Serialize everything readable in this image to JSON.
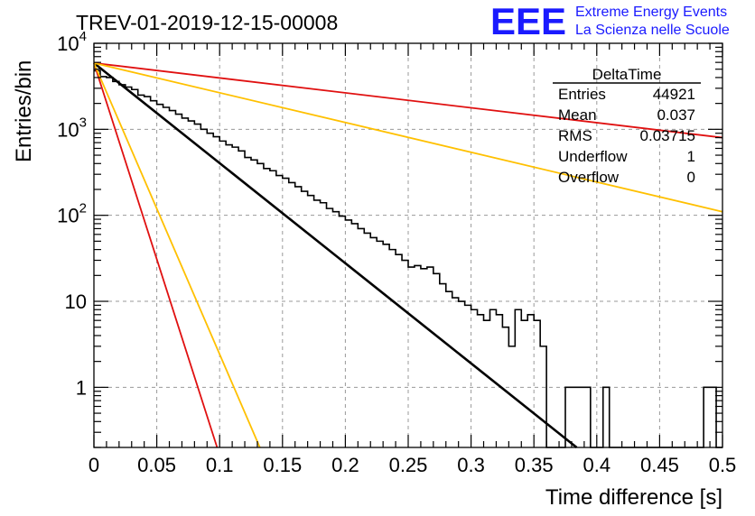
{
  "chart_data": {
    "type": "histogram",
    "title": "TREV-01-2019-12-15-00008",
    "xlabel": "Time difference [s]",
    "ylabel": "Entries/bin",
    "xlim": [
      0,
      0.5
    ],
    "ylim": [
      0.2,
      10000
    ],
    "yscale": "log",
    "grid": true,
    "x_ticks": [
      {
        "value": 0,
        "label": "0"
      },
      {
        "value": 0.05,
        "label": "0.05"
      },
      {
        "value": 0.1,
        "label": "0.1"
      },
      {
        "value": 0.15,
        "label": "0.15"
      },
      {
        "value": 0.2,
        "label": "0.2"
      },
      {
        "value": 0.25,
        "label": "0.25"
      },
      {
        "value": 0.3,
        "label": "0.3"
      },
      {
        "value": 0.35,
        "label": "0.35"
      },
      {
        "value": 0.4,
        "label": "0.4"
      },
      {
        "value": 0.45,
        "label": "0.45"
      },
      {
        "value": 0.5,
        "label": "0.5"
      }
    ],
    "y_ticks": [
      {
        "value": 1,
        "label": "1"
      },
      {
        "value": 10,
        "label": "10"
      },
      {
        "value": 100,
        "label": "10",
        "exp": "2"
      },
      {
        "value": 1000,
        "label": "10",
        "exp": "3"
      },
      {
        "value": 10000,
        "label": "10",
        "exp": "4"
      }
    ],
    "histogram": {
      "name": "DeltaTime",
      "color": "#000000",
      "bin_width": 0.005,
      "bins": [
        {
          "x0": 0.0,
          "y": 4800
        },
        {
          "x0": 0.005,
          "y": 4100
        },
        {
          "x0": 0.01,
          "y": 4000
        },
        {
          "x0": 0.015,
          "y": 3600
        },
        {
          "x0": 0.02,
          "y": 3300
        },
        {
          "x0": 0.025,
          "y": 3100
        },
        {
          "x0": 0.03,
          "y": 2900
        },
        {
          "x0": 0.035,
          "y": 2500
        },
        {
          "x0": 0.04,
          "y": 2400
        },
        {
          "x0": 0.045,
          "y": 2150
        },
        {
          "x0": 0.05,
          "y": 1950
        },
        {
          "x0": 0.055,
          "y": 1800
        },
        {
          "x0": 0.06,
          "y": 1650
        },
        {
          "x0": 0.065,
          "y": 1500
        },
        {
          "x0": 0.07,
          "y": 1350
        },
        {
          "x0": 0.075,
          "y": 1250
        },
        {
          "x0": 0.08,
          "y": 1150
        },
        {
          "x0": 0.085,
          "y": 1000
        },
        {
          "x0": 0.09,
          "y": 900
        },
        {
          "x0": 0.095,
          "y": 820
        },
        {
          "x0": 0.1,
          "y": 730
        },
        {
          "x0": 0.105,
          "y": 660
        },
        {
          "x0": 0.11,
          "y": 620
        },
        {
          "x0": 0.115,
          "y": 560
        },
        {
          "x0": 0.12,
          "y": 470
        },
        {
          "x0": 0.125,
          "y": 440
        },
        {
          "x0": 0.13,
          "y": 400
        },
        {
          "x0": 0.135,
          "y": 350
        },
        {
          "x0": 0.14,
          "y": 330
        },
        {
          "x0": 0.145,
          "y": 290
        },
        {
          "x0": 0.15,
          "y": 270
        },
        {
          "x0": 0.155,
          "y": 240
        },
        {
          "x0": 0.16,
          "y": 215
        },
        {
          "x0": 0.165,
          "y": 190
        },
        {
          "x0": 0.17,
          "y": 170
        },
        {
          "x0": 0.175,
          "y": 150
        },
        {
          "x0": 0.18,
          "y": 140
        },
        {
          "x0": 0.185,
          "y": 120
        },
        {
          "x0": 0.19,
          "y": 110
        },
        {
          "x0": 0.195,
          "y": 98
        },
        {
          "x0": 0.2,
          "y": 88
        },
        {
          "x0": 0.205,
          "y": 80
        },
        {
          "x0": 0.21,
          "y": 70
        },
        {
          "x0": 0.215,
          "y": 62
        },
        {
          "x0": 0.22,
          "y": 55
        },
        {
          "x0": 0.225,
          "y": 50
        },
        {
          "x0": 0.23,
          "y": 46
        },
        {
          "x0": 0.235,
          "y": 40
        },
        {
          "x0": 0.24,
          "y": 35
        },
        {
          "x0": 0.245,
          "y": 30
        },
        {
          "x0": 0.25,
          "y": 25
        },
        {
          "x0": 0.255,
          "y": 26
        },
        {
          "x0": 0.26,
          "y": 24
        },
        {
          "x0": 0.265,
          "y": 25
        },
        {
          "x0": 0.27,
          "y": 21
        },
        {
          "x0": 0.275,
          "y": 16
        },
        {
          "x0": 0.28,
          "y": 13
        },
        {
          "x0": 0.285,
          "y": 11
        },
        {
          "x0": 0.29,
          "y": 10
        },
        {
          "x0": 0.295,
          "y": 9
        },
        {
          "x0": 0.3,
          "y": 8
        },
        {
          "x0": 0.305,
          "y": 7
        },
        {
          "x0": 0.31,
          "y": 6
        },
        {
          "x0": 0.315,
          "y": 8
        },
        {
          "x0": 0.32,
          "y": 7
        },
        {
          "x0": 0.325,
          "y": 5
        },
        {
          "x0": 0.33,
          "y": 3
        },
        {
          "x0": 0.335,
          "y": 8
        },
        {
          "x0": 0.34,
          "y": 6
        },
        {
          "x0": 0.345,
          "y": 7
        },
        {
          "x0": 0.35,
          "y": 6
        },
        {
          "x0": 0.355,
          "y": 3
        },
        {
          "x0": 0.36,
          "y": 0
        },
        {
          "x0": 0.365,
          "y": 0
        },
        {
          "x0": 0.37,
          "y": 0
        },
        {
          "x0": 0.375,
          "y": 1
        },
        {
          "x0": 0.38,
          "y": 1
        },
        {
          "x0": 0.385,
          "y": 1
        },
        {
          "x0": 0.39,
          "y": 1
        },
        {
          "x0": 0.395,
          "y": 0
        },
        {
          "x0": 0.4,
          "y": 0
        },
        {
          "x0": 0.405,
          "y": 1
        },
        {
          "x0": 0.41,
          "y": 0
        },
        {
          "x0": 0.415,
          "y": 0
        },
        {
          "x0": 0.42,
          "y": 0
        },
        {
          "x0": 0.425,
          "y": 0
        },
        {
          "x0": 0.43,
          "y": 0
        },
        {
          "x0": 0.435,
          "y": 0
        },
        {
          "x0": 0.44,
          "y": 0
        },
        {
          "x0": 0.445,
          "y": 0
        },
        {
          "x0": 0.45,
          "y": 0
        },
        {
          "x0": 0.455,
          "y": 0
        },
        {
          "x0": 0.46,
          "y": 0
        },
        {
          "x0": 0.465,
          "y": 0
        },
        {
          "x0": 0.47,
          "y": 0
        },
        {
          "x0": 0.475,
          "y": 0
        },
        {
          "x0": 0.48,
          "y": 0
        },
        {
          "x0": 0.485,
          "y": 1
        },
        {
          "x0": 0.49,
          "y": 1
        },
        {
          "x0": 0.495,
          "y": 0
        }
      ]
    },
    "fit_lines": [
      {
        "color": "#000000",
        "points": [
          [
            0,
            5900
          ],
          [
            0.384,
            0.2
          ]
        ]
      },
      {
        "color": "#e01010",
        "points": [
          [
            0,
            5900
          ],
          [
            0.5,
            800
          ]
        ]
      },
      {
        "color": "#ffc000",
        "points": [
          [
            0,
            5900
          ],
          [
            0.5,
            110
          ]
        ]
      },
      {
        "color": "#e01010",
        "points": [
          [
            0,
            5900
          ],
          [
            0.098,
            0.2
          ]
        ]
      },
      {
        "color": "#ffc000",
        "points": [
          [
            0,
            5900
          ],
          [
            0.132,
            0.2
          ]
        ]
      }
    ],
    "stats_box": {
      "name": "DeltaTime",
      "rows": [
        {
          "label": "Entries",
          "value": "44921"
        },
        {
          "label": "Mean",
          "value": "0.037"
        },
        {
          "label": "RMS",
          "value": "0.03715"
        },
        {
          "label": "Underflow",
          "value": "1"
        },
        {
          "label": "Overflow",
          "value": "0"
        }
      ]
    }
  },
  "logo": {
    "text": "EEE",
    "line1": "Extreme Energy Events",
    "line2": "La Scienza nelle Scuole",
    "color": "#1a1aff"
  }
}
